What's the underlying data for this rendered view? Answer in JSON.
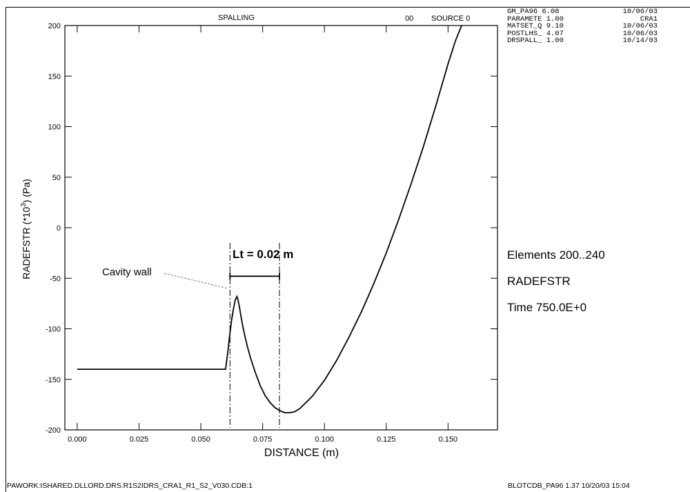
{
  "header": {
    "title": "SPALLING",
    "code": "00",
    "source": "SOURCE 0"
  },
  "info_lines": [
    [
      "GM_PA96 6.08",
      "10/06/03"
    ],
    [
      "PARAMETE 1.00",
      "CRA1"
    ],
    [
      "MATSET_Q 9.10",
      "10/06/03"
    ],
    [
      "POSTLHS_ 4.07",
      "10/06/03"
    ],
    [
      "DRSPALL_ 1.00",
      "10/14/03"
    ]
  ],
  "side_labels": {
    "elements": "Elements 200..240",
    "variable": "RADEFSTR",
    "time": "Time 750.0E+0"
  },
  "footer": {
    "left": "PAWORK:ISHARED.DLLORD.DRS.R1S2IDRS_CRA1_R1_S2_V030.CDB:1",
    "right": "BLOTCDB_PA96 1.37 10/20/03 15:04"
  },
  "annotations": {
    "lt": "Lt = 0.02 m",
    "cavity": "Cavity wall"
  },
  "chart_data": {
    "type": "line",
    "xlabel": "DISTANCE (m)",
    "ylabel": "RADEFSTR (*10^3) (Pa)",
    "xlim": [
      -0.005,
      0.17
    ],
    "ylim": [
      -200,
      200
    ],
    "x_ticks": [
      0.0,
      0.025,
      0.05,
      0.075,
      0.1,
      0.125,
      0.15
    ],
    "x_tick_labels": [
      "0.000",
      "0.025",
      "0.050",
      "0.075",
      "0.100",
      "0.125",
      "0.150"
    ],
    "y_ticks": [
      200,
      150,
      100,
      50,
      0,
      -50,
      -100,
      -150,
      -200
    ],
    "y_tick_labels": [
      "200",
      "150",
      "100",
      "50",
      "0",
      "-50",
      "-100",
      "-150",
      "-200"
    ],
    "series": [
      {
        "x": [
          0.0,
          0.02,
          0.04,
          0.06,
          0.0608,
          0.0616,
          0.0624,
          0.0632,
          0.064,
          0.0646,
          0.065,
          0.0656,
          0.0662,
          0.067,
          0.068,
          0.069,
          0.07,
          0.072,
          0.074,
          0.076,
          0.078,
          0.08,
          0.082,
          0.084,
          0.086,
          0.088,
          0.09,
          0.095,
          0.1,
          0.105,
          0.11,
          0.115,
          0.12,
          0.125,
          0.13,
          0.135,
          0.14,
          0.145,
          0.15,
          0.153,
          0.1555
        ],
        "y": [
          -140,
          -140,
          -140,
          -140,
          -125,
          -108,
          -92,
          -80,
          -71,
          -68,
          -71,
          -78,
          -87,
          -98,
          -109,
          -119,
          -128,
          -143,
          -156,
          -166,
          -173,
          -178,
          -181,
          -183,
          -183,
          -182,
          -179,
          -167,
          -151,
          -131,
          -108,
          -83,
          -55,
          -25,
          8,
          43,
          80,
          120,
          162,
          185,
          200
        ]
      }
    ],
    "vlines_x": [
      0.0618,
      0.0818
    ],
    "bracket": {
      "x1": 0.0618,
      "x2": 0.0818,
      "y": -48
    },
    "grid": false
  }
}
